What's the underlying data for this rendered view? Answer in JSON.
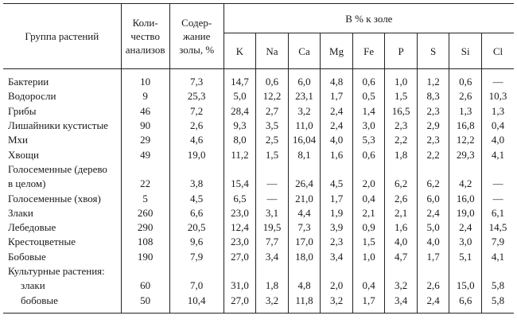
{
  "header": {
    "group": "Группа растений",
    "count_line1": "Коли-",
    "count_line2": "чество",
    "count_line3": "анализов",
    "ash_line1": "Содер-",
    "ash_line2": "жание",
    "ash_line3": "золы, %",
    "pct": "В % к золе",
    "elements": [
      "K",
      "Na",
      "Ca",
      "Mg",
      "Fe",
      "P",
      "S",
      "Si",
      "Cl"
    ]
  },
  "rows": [
    {
      "name": "Бактерии",
      "cells": [
        "10",
        "7,3",
        "14,7",
        "0,6",
        "6,0",
        "4,8",
        "0,6",
        "1,0",
        "1,2",
        "0,6",
        "—"
      ]
    },
    {
      "name": "Водоросли",
      "cells": [
        "9",
        "25,3",
        "5,0",
        "12,2",
        "23,1",
        "1,7",
        "0,5",
        "1,5",
        "8,3",
        "2,6",
        "10,3"
      ]
    },
    {
      "name": "Грибы",
      "cells": [
        "46",
        "7,2",
        "28,4",
        "2,7",
        "3,2",
        "2,4",
        "1,4",
        "16,5",
        "2,3",
        "1,3",
        "1,3"
      ]
    },
    {
      "name": "Лишайники кустистые",
      "cells": [
        "90",
        "2,6",
        "9,3",
        "3,5",
        "11,0",
        "2,4",
        "3,0",
        "2,3",
        "2,9",
        "16,8",
        "0,4"
      ]
    },
    {
      "name": "Мхи",
      "cells": [
        "29",
        "4,6",
        "8,0",
        "2,5",
        "16,04",
        "4,0",
        "5,3",
        "2,2",
        "2,3",
        "12,2",
        "4,0"
      ]
    },
    {
      "name": "Хвощи",
      "cells": [
        "49",
        "19,0",
        "11,2",
        "1,5",
        "8,1",
        "1,6",
        "0,6",
        "1,8",
        "2,2",
        "29,3",
        "4,1"
      ]
    },
    {
      "name": "Голосеменные (дерево",
      "cells": [
        "",
        "",
        "",
        "",
        "",
        "",
        "",
        "",
        "",
        "",
        ""
      ]
    },
    {
      "name": "в целом)",
      "cells": [
        "22",
        "3,8",
        "15,4",
        "—",
        "26,4",
        "4,5",
        "2,0",
        "6,2",
        "6,2",
        "4,2",
        "—"
      ]
    },
    {
      "name": "Голосеменные (хвоя)",
      "cells": [
        "5",
        "4,5",
        "6,5",
        "—",
        "21,0",
        "1,7",
        "0,4",
        "2,6",
        "6,0",
        "16,0",
        "—"
      ]
    },
    {
      "name": "Злаки",
      "cells": [
        "260",
        "6,6",
        "23,0",
        "3,1",
        "4,4",
        "1,9",
        "2,1",
        "2,1",
        "2,4",
        "19,0",
        "6,1"
      ]
    },
    {
      "name": "Лебедовые",
      "cells": [
        "290",
        "20,5",
        "12,4",
        "19,5",
        "7,3",
        "3,9",
        "0,9",
        "1,6",
        "5,0",
        "2,4",
        "14,5"
      ]
    },
    {
      "name": "Крестоцветные",
      "cells": [
        "108",
        "9,6",
        "23,0",
        "7,7",
        "17,0",
        "2,3",
        "1,5",
        "4,0",
        "4,0",
        "3,0",
        "7,9"
      ]
    },
    {
      "name": "Бобовые",
      "cells": [
        "190",
        "7,9",
        "27,0",
        "3,4",
        "18,0",
        "3,4",
        "1,0",
        "4,7",
        "1,7",
        "5,1",
        "4,1"
      ]
    },
    {
      "name": "Культурные растения:",
      "cells": [
        "",
        "",
        "",
        "",
        "",
        "",
        "",
        "",
        "",
        "",
        ""
      ]
    },
    {
      "name": "злаки",
      "indent": true,
      "cells": [
        "60",
        "7,0",
        "31,0",
        "1,8",
        "4,8",
        "2,0",
        "0,4",
        "3,2",
        "2,6",
        "15,0",
        "5,8"
      ]
    },
    {
      "name": "бобовые",
      "indent": true,
      "cells": [
        "50",
        "10,4",
        "27,0",
        "3,2",
        "11,8",
        "3,2",
        "1,7",
        "3,4",
        "2,4",
        "6,6",
        "5,8"
      ]
    }
  ]
}
